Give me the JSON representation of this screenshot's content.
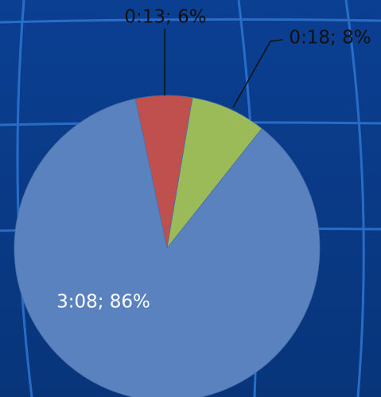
{
  "chart_data": {
    "type": "pie",
    "values": [
      6,
      8,
      86
    ],
    "value_labels": [
      "0:13; 6%",
      "0:18; 8%",
      "3:08; 86%"
    ],
    "colors": [
      "#c0504d",
      "#9bbb59",
      "#5a82bf"
    ]
  }
}
